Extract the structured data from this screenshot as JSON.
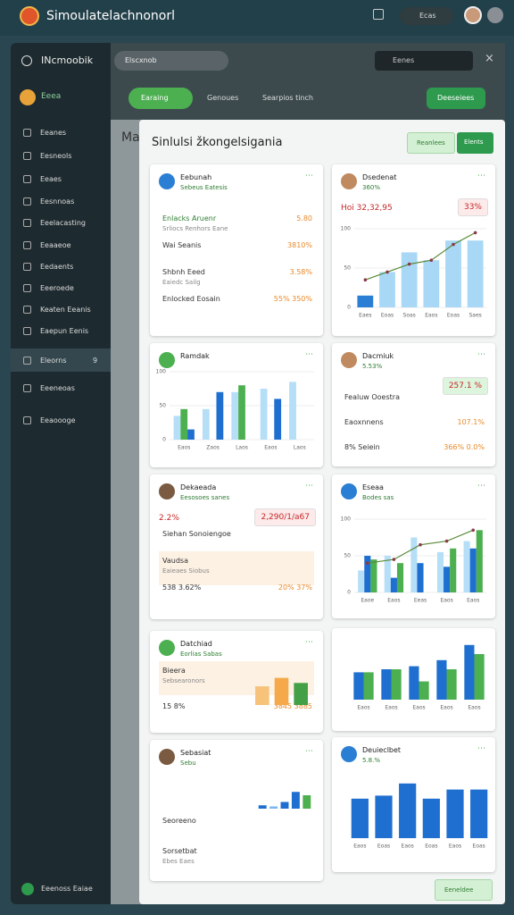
{
  "header": {
    "title": "Simoulatelachnonorl",
    "status": "Ecas"
  },
  "sidebar": {
    "brand": "INcmoobik",
    "section": "Eeea",
    "items": [
      {
        "label": "Eeanes"
      },
      {
        "label": "Eesneols"
      },
      {
        "label": "Eeaes"
      },
      {
        "label": "Eesnnoas"
      },
      {
        "label": "Eeelacasting"
      },
      {
        "label": "Eeaaeoe"
      },
      {
        "label": "Eedaents"
      },
      {
        "label": "Eeeroede"
      },
      {
        "label": "Keaten Eeanis"
      },
      {
        "label": "Eaepun Eenis"
      },
      {
        "label": "Eleorns",
        "badge": "9",
        "active": true
      },
      {
        "label": "Eeeneoas"
      },
      {
        "label": "Eeaoooge"
      }
    ],
    "footer": "Eeenoss Eaiae"
  },
  "toolbar": {
    "search": "Elscxnob",
    "search_right": "Eenes",
    "tabs": [
      "Earaing",
      "Genoues",
      "Searpios tinch"
    ],
    "action": "Deeseiees",
    "page_label": "Ma"
  },
  "modal": {
    "title": "Sinlulsi žkongelsigania",
    "buttons": [
      "Reanlees",
      "Elents"
    ],
    "footer_button": "Eeneldee",
    "cards": [
      {
        "title": "Eebunah",
        "subtitle": "Sebeus Eatesis",
        "rows": [
          {
            "label": "Enlacks Aruenr",
            "value": "5.80",
            "note": "Srliocs Renhors Eane"
          },
          {
            "label": "Wai Seanis",
            "value": "3810%"
          },
          {
            "label": "Shbnh Eeed",
            "value": "3.58%",
            "note": "Eaiedc Sailg"
          },
          {
            "label": "Enlocked Eosain",
            "value": "55% 350%"
          }
        ]
      },
      {
        "title": "Dsedenat",
        "subtitle": "360%",
        "headline": "Hoi 32,32,95",
        "badge": "33%",
        "chart": {
          "type": "bar",
          "categories": [
            "Eaes",
            "Eoas",
            "Soas",
            "Eaos",
            "Eoas",
            "Saes"
          ],
          "ylim": [
            0,
            100
          ],
          "yticks": [
            0,
            50,
            100
          ],
          "series": [
            {
              "colors": [
                "#2a7fd4",
                "#a8d8f5",
                "#a8d8f5",
                "#a8d8f5",
                "#a8d8f5",
                "#a8d8f5"
              ],
              "values": [
                15,
                45,
                70,
                60,
                85,
                85
              ]
            },
            {
              "type": "line",
              "color": "#5a8a3a",
              "values": [
                35,
                45,
                55,
                60,
                80,
                95
              ]
            }
          ]
        }
      },
      {
        "title": "Ramdak",
        "chart": {
          "type": "bar",
          "categories": [
            "Eaos",
            "Zaos",
            "Laos",
            "Eaos",
            "Laos"
          ],
          "ylim": [
            0,
            100
          ],
          "yticks": [
            0,
            50,
            100
          ],
          "series": [
            {
              "color": "#b5def7",
              "values": [
                35,
                45,
                70,
                75,
                85
              ]
            },
            {
              "color": "#4caf50",
              "values": [
                45,
                0,
                80,
                0,
                0
              ]
            },
            {
              "color": "#1e6fd0",
              "values": [
                15,
                70,
                0,
                60,
                0
              ]
            }
          ]
        }
      },
      {
        "title": "Dacmiuk",
        "subtitle": "5.53%",
        "badge": "257.1 %",
        "rows": [
          {
            "label": "Fealuw Ooestra"
          },
          {
            "label": "Eaoxnnens",
            "value": "107.1%"
          },
          {
            "label": "8% Seiein",
            "value": "366% 0.0%"
          }
        ]
      },
      {
        "title": "Dekaeada",
        "subtitle": "Eesosoes sanes",
        "headline": "2.2%",
        "badge": "2,290/1/a67",
        "rows": [
          {
            "label": "Siehan Sonoiengoe"
          },
          {
            "label": "Vaudsa",
            "note": "Eaieaes Siobus",
            "highlight": true
          },
          {
            "label": "538 3.62%",
            "value": "20%  37%"
          }
        ]
      },
      {
        "title": "Eseaa",
        "subtitle": "Bodes sas",
        "chart": {
          "type": "bar",
          "categories": [
            "Eaoe",
            "Eaos",
            "Eeas",
            "Eaos",
            "Eaos"
          ],
          "ylim": [
            0,
            100
          ],
          "yticks": [
            0,
            50,
            100
          ],
          "series": [
            {
              "color": "#b5def7",
              "values": [
                30,
                50,
                75,
                55,
                70
              ]
            },
            {
              "color": "#1e6fd0",
              "values": [
                50,
                20,
                40,
                35,
                60
              ]
            },
            {
              "color": "#4caf50",
              "values": [
                45,
                40,
                0,
                60,
                85
              ]
            },
            {
              "type": "line",
              "color": "#5a8a3a",
              "values": [
                40,
                45,
                65,
                70,
                85
              ]
            }
          ]
        }
      },
      {
        "title": "Datchiad",
        "subtitle": "Eorlias Sabas",
        "rows": [
          {
            "label": "Bieera",
            "note": "Sebsearonors",
            "highlight": true
          },
          {
            "label": "15 8%",
            "value": "3845  3885"
          }
        ],
        "chart": {
          "type": "bar",
          "ylim": [
            0,
            100
          ],
          "series": [
            {
              "colors": [
                "#f7c27a",
                "#f5a94a",
                "#43a047"
              ],
              "values": [
                55,
                80,
                65
              ]
            }
          ]
        }
      },
      {
        "chart": {
          "type": "bar",
          "categories": [
            "Eaos",
            "Eaos",
            "Eaos",
            "Eaos",
            "Eaos"
          ],
          "ylim": [
            0,
            100
          ],
          "series": [
            {
              "color": "#1e6fd0",
              "values": [
                45,
                50,
                55,
                65,
                90
              ]
            },
            {
              "color": "#4caf50",
              "values": [
                45,
                50,
                30,
                50,
                75
              ]
            }
          ]
        }
      },
      {
        "title": "Sebasiat",
        "subtitle": "Sebu",
        "rows": [
          {
            "label": "Seoreeno"
          },
          {
            "label": "Sorsetbat",
            "note": "Ebes Eaes"
          }
        ],
        "chart": {
          "type": "bar",
          "ylim": [
            0,
            100
          ],
          "series": [
            {
              "colors": [
                "#1e6fd0",
                "#7ab8ee",
                "#1e6fd0",
                "#1e6fd0",
                "#4caf50"
              ],
              "values": [
                15,
                10,
                30,
                75,
                60
              ]
            }
          ]
        }
      },
      {
        "title": "Deuieclbet",
        "subtitle": "5.8.%",
        "chart": {
          "type": "bar",
          "categories": [
            "Eaos",
            "Eoas",
            "Eaos",
            "Eoas",
            "Eaos",
            "Eoas"
          ],
          "ylim": [
            0,
            100
          ],
          "series": [
            {
              "color": "#1e6fd0",
              "values": [
                65,
                70,
                90,
                65,
                80,
                80
              ]
            }
          ]
        }
      }
    ]
  }
}
